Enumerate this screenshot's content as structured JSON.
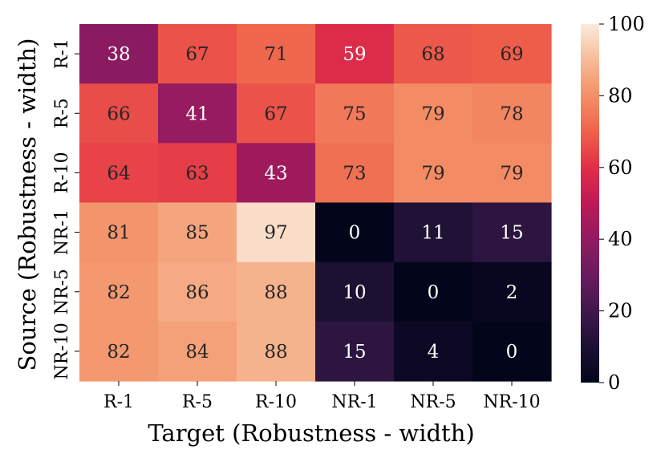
{
  "chart_data": {
    "type": "heatmap",
    "xlabel": "Target (Robustness - width)",
    "ylabel": "Source (Robustness - width)",
    "x_categories": [
      "R-1",
      "R-5",
      "R-10",
      "NR-1",
      "NR-5",
      "NR-10"
    ],
    "y_categories": [
      "R-1",
      "R-5",
      "R-10",
      "NR-1",
      "NR-5",
      "NR-10"
    ],
    "values": [
      [
        38,
        67,
        71,
        59,
        68,
        69
      ],
      [
        66,
        41,
        67,
        75,
        79,
        78
      ],
      [
        64,
        63,
        43,
        73,
        79,
        79
      ],
      [
        81,
        85,
        97,
        0,
        11,
        15
      ],
      [
        82,
        86,
        88,
        10,
        0,
        2
      ],
      [
        82,
        84,
        88,
        15,
        4,
        0
      ]
    ],
    "colorbar": {
      "range": [
        0,
        100
      ],
      "ticks": [
        "0",
        "20",
        "40",
        "60",
        "80",
        "100"
      ],
      "colormap": "rocket"
    }
  }
}
